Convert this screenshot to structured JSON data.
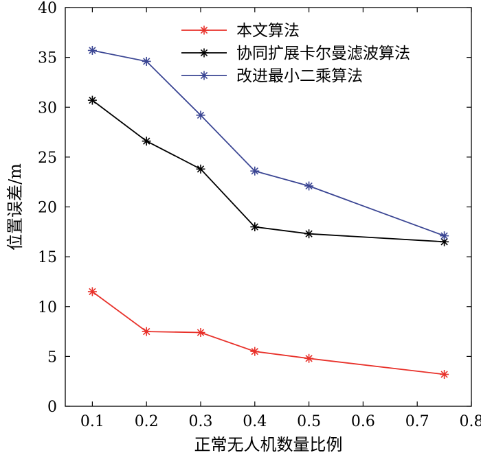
{
  "chart_data": {
    "type": "line",
    "xlabel": "正常无人机数量比例",
    "ylabel": "位置误差/m",
    "xlim": [
      0.05,
      0.8
    ],
    "ylim": [
      0,
      40
    ],
    "xticks": [
      0.1,
      0.2,
      0.3,
      0.4,
      0.5,
      0.6,
      0.7,
      0.8
    ],
    "xtick_labels": [
      "0.1",
      "0.2",
      "0.3",
      "0.4",
      "0.5",
      "0.6",
      "0.7",
      "0.8"
    ],
    "yticks": [
      0,
      5,
      10,
      15,
      20,
      25,
      30,
      35,
      40
    ],
    "ytick_labels": [
      "0",
      "5",
      "10",
      "15",
      "20",
      "25",
      "30",
      "35",
      "40"
    ],
    "grid": false,
    "legend_position": "top-right",
    "x": [
      0.1,
      0.2,
      0.3,
      0.4,
      0.5,
      0.75
    ],
    "series": [
      {
        "name": "本文算法",
        "color": "#e8312a",
        "values": [
          11.5,
          7.5,
          7.4,
          5.5,
          4.8,
          3.2
        ]
      },
      {
        "name": "协同扩展卡尔曼滤波算法",
        "color": "#000000",
        "values": [
          30.7,
          26.6,
          23.8,
          18.0,
          17.3,
          16.5
        ]
      },
      {
        "name": "改进最小二乘算法",
        "color": "#3a4593",
        "values": [
          35.7,
          34.6,
          29.2,
          23.6,
          22.1,
          17.1
        ]
      }
    ]
  }
}
